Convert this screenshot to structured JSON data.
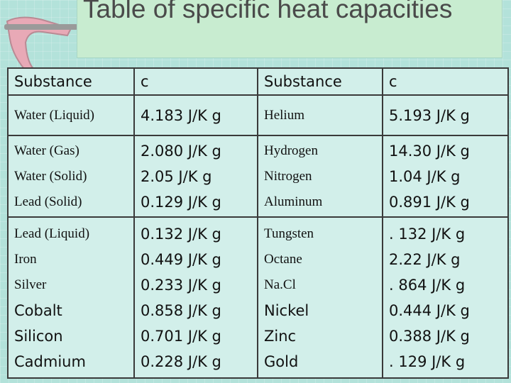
{
  "title": "Table of specific heat capacities",
  "table": {
    "header": [
      "Substance",
      "c",
      "Substance",
      "c"
    ],
    "rows": [
      [
        [
          "Water (Liquid)"
        ],
        [
          "4.183 J/K g"
        ],
        [
          "Helium"
        ],
        [
          "5.193 J/K g"
        ]
      ],
      [
        [
          "Water (Gas)",
          "Water (Solid)",
          "Lead (Solid)"
        ],
        [
          "2.080 J/K g",
          "2.05 J/K g",
          "0.129 J/K g"
        ],
        [
          "Hydrogen",
          "Nitrogen",
          "Aluminum"
        ],
        [
          "14.30 J/K g",
          "1.04 J/K g",
          "0.891 J/K g"
        ]
      ],
      [
        [
          "Lead (Liquid)",
          "Iron",
          "Silver",
          "Cobalt",
          "Silicon",
          "Cadmium"
        ],
        [
          "0.132 J/K g",
          "0.449 J/K g",
          "0.233 J/K g",
          "0.858 J/K g",
          "0.701 J/K g",
          "0.228 J/K g"
        ],
        [
          "Tungsten",
          "Octane",
          "Na.Cl",
          "Nickel",
          "Zinc",
          "Gold"
        ],
        [
          ". 132 J/K g",
          "2.22 J/K g",
          ". 864 J/K g",
          "0.444 J/K g",
          "0.388 J/K g",
          ". 129 J/K g"
        ]
      ]
    ]
  }
}
